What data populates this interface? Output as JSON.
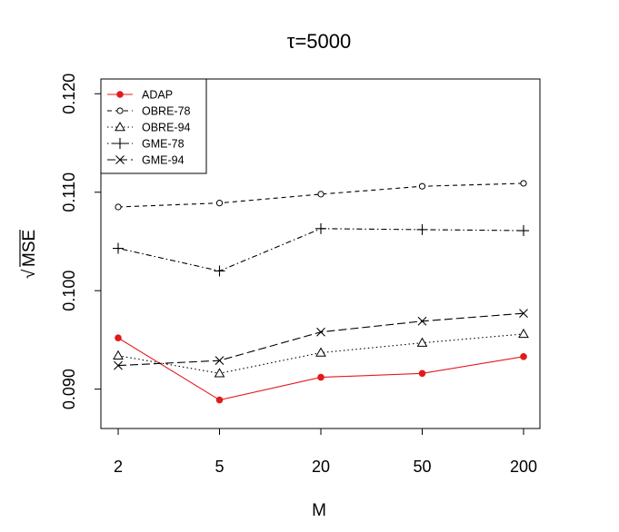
{
  "chart_data": {
    "type": "line",
    "title": "τ=5000",
    "xlabel": "M",
    "ylabel_radical": "√",
    "ylabel": "MSE",
    "categories": [
      "2",
      "5",
      "20",
      "50",
      "200"
    ],
    "yticks": [
      "0.090",
      "0.100",
      "0.110",
      "0.120"
    ],
    "ylim": [
      0.086,
      0.1215
    ],
    "legend_position": "top-left",
    "series": [
      {
        "name": "ADAP",
        "color": "#e31a1c",
        "dash": "solid",
        "marker": "filled-circle",
        "values": [
          0.0952,
          0.0889,
          0.0912,
          0.0916,
          0.0933
        ]
      },
      {
        "name": "OBRE-78",
        "color": "#000000",
        "dash": "dashed",
        "marker": "open-circle",
        "values": [
          0.1085,
          0.1089,
          0.1098,
          0.1106,
          0.1109
        ]
      },
      {
        "name": "OBRE-94",
        "color": "#000000",
        "dash": "dotted",
        "marker": "triangle",
        "values": [
          0.0934,
          0.0916,
          0.0937,
          0.0947,
          0.0956
        ]
      },
      {
        "name": "GME-78",
        "color": "#000000",
        "dash": "dotdash",
        "marker": "plus",
        "values": [
          0.1043,
          0.102,
          0.1063,
          0.1062,
          0.1061
        ]
      },
      {
        "name": "GME-94",
        "color": "#000000",
        "dash": "longdash",
        "marker": "cross",
        "values": [
          0.0924,
          0.0929,
          0.0958,
          0.0969,
          0.0977
        ]
      }
    ]
  }
}
